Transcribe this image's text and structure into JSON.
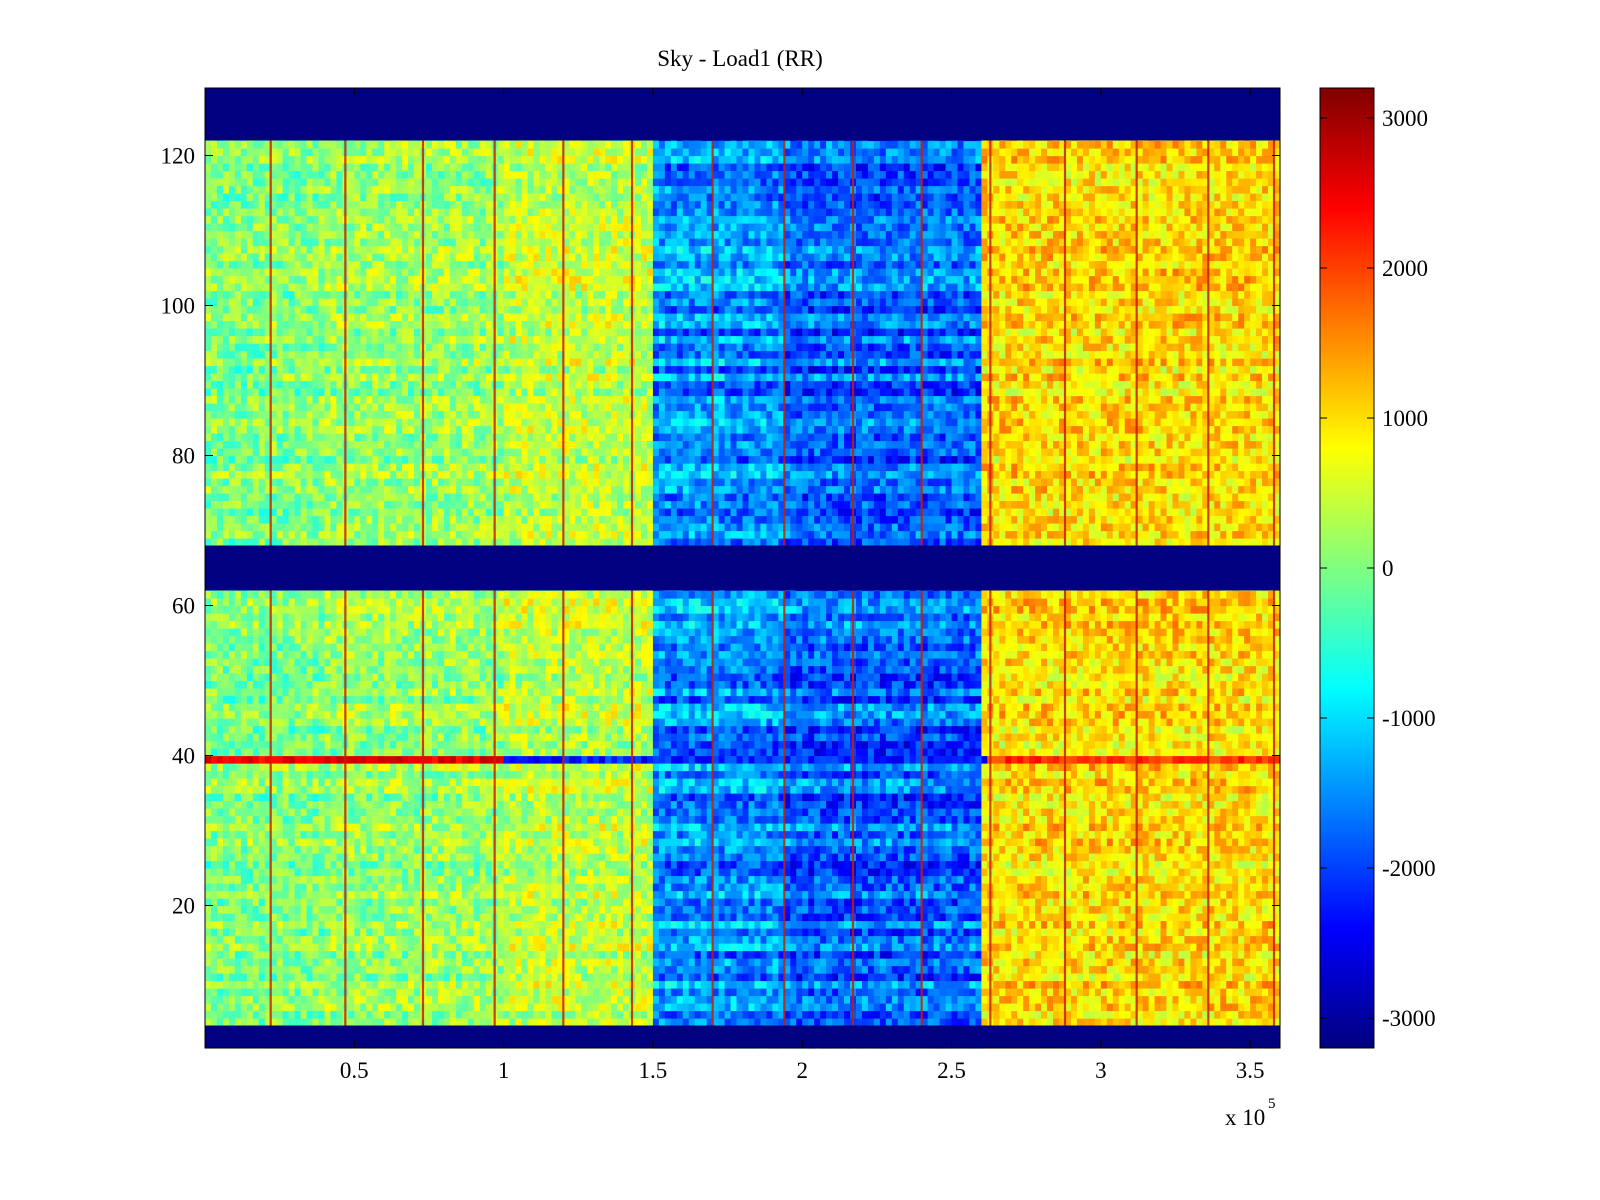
{
  "chart_data": {
    "type": "heatmap",
    "title": "Sky - Load1 (RR)",
    "xlabel": "",
    "ylabel": "",
    "x_multiplier": "x 10",
    "x_multiplier_exponent": "5",
    "xlim": [
      0,
      360000
    ],
    "ylim": [
      1,
      129
    ],
    "xticks": [
      50000,
      100000,
      150000,
      200000,
      250000,
      300000,
      350000
    ],
    "xtick_labels": [
      "0.5",
      "1",
      "1.5",
      "2",
      "2.5",
      "3",
      "3.5"
    ],
    "yticks": [
      20,
      40,
      60,
      80,
      100,
      120
    ],
    "ytick_labels": [
      "20",
      "40",
      "60",
      "80",
      "100",
      "120"
    ],
    "colormap": "jet",
    "clim": [
      -3200,
      3200
    ],
    "colorbar": {
      "position": "right",
      "ticks": [
        -3000,
        -2000,
        -1000,
        0,
        1000,
        2000,
        3000
      ],
      "tick_labels": [
        "-3000",
        "-2000",
        "-1000",
        "0",
        "1000",
        "2000",
        "3000"
      ]
    },
    "masked_row_bands": [
      [
        1,
        4
      ],
      [
        62,
        68
      ],
      [
        122,
        129
      ]
    ],
    "vertical_spike_lines_x": [
      22000,
      47000,
      73000,
      97000,
      120000,
      143000,
      170000,
      194000,
      217000,
      240000,
      263000,
      288000,
      312000,
      336000,
      358000
    ],
    "horizontal_spike_row": 39,
    "column_segments": [
      {
        "x_range": [
          0,
          40000
        ],
        "level": 0
      },
      {
        "x_range": [
          40000,
          100000
        ],
        "level": 150
      },
      {
        "x_range": [
          100000,
          150000
        ],
        "level": 400
      },
      {
        "x_range": [
          150000,
          195000
        ],
        "level": -1500
      },
      {
        "x_range": [
          195000,
          260000
        ],
        "level": -1800
      },
      {
        "x_range": [
          260000,
          360000
        ],
        "level": 1000
      }
    ],
    "grid": false,
    "legend": "none"
  }
}
